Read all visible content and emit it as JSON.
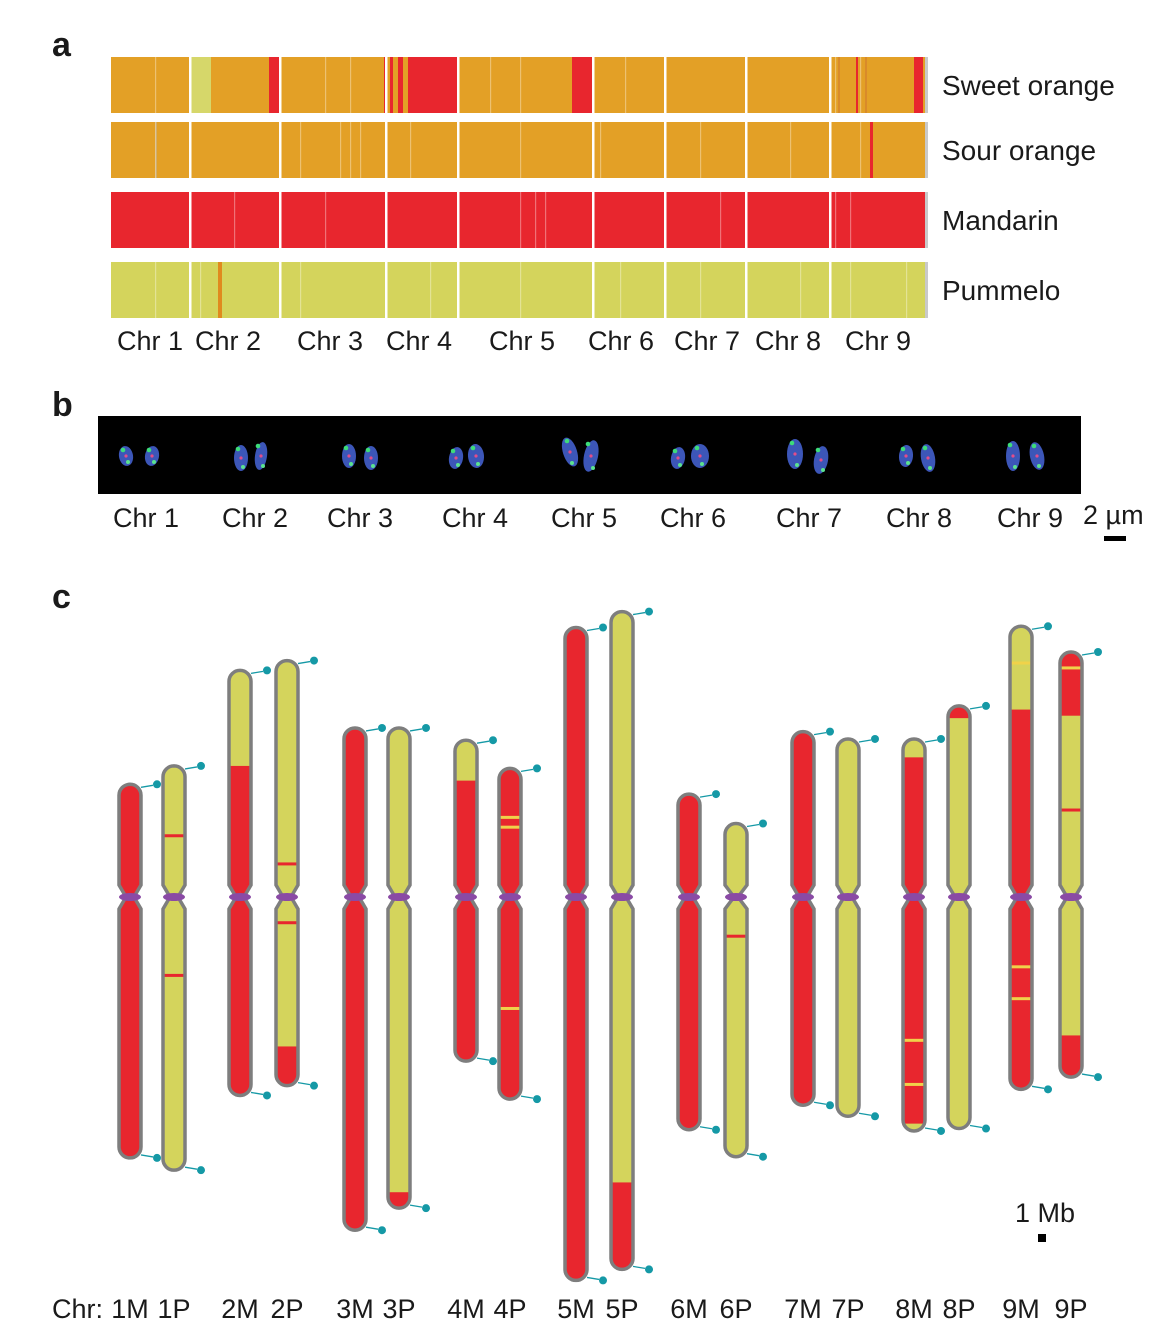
{
  "panels": {
    "a": "a",
    "b": "b",
    "c": "c"
  },
  "colors": {
    "sweet_orange_base": "#e3a026",
    "mandarin_red": "#e8262e",
    "pummelo_yellow": "#d4d45c",
    "light_yellow": "#d6d76a",
    "centromere_purple": "#8a4aa5",
    "telomere_teal": "#1599a6",
    "outline_gray": "#7e7e7e",
    "image_black": "#000000"
  },
  "panel_a": {
    "rows": [
      {
        "label": "Sweet orange",
        "base": "#e3a026"
      },
      {
        "label": "Sour orange",
        "base": "#e3a026"
      },
      {
        "label": "Mandarin",
        "base": "#e8262e"
      },
      {
        "label": "Pummelo",
        "base": "#d4d45c"
      }
    ],
    "chromosome_labels": [
      "Chr 1",
      "Chr 2",
      "Chr 3",
      "Chr 4",
      "Chr 5",
      "Chr 6",
      "Chr 7",
      "Chr 8",
      "Chr 9"
    ]
  },
  "panel_b": {
    "chromosome_labels": [
      "Chr 1",
      "Chr 2",
      "Chr 3",
      "Chr 4",
      "Chr 5",
      "Chr 6",
      "Chr 7",
      "Chr 8",
      "Chr 9"
    ],
    "scale_bar_label": "2 µm"
  },
  "panel_c": {
    "axis_prefix": "Chr:",
    "scale_bar_label": "1 Mb",
    "chromosomes": [
      {
        "label": "1M",
        "length_mb": 30.5,
        "centromere_mb": 9.2,
        "base": "red",
        "yellow_segments": [],
        "red_bands_mb": []
      },
      {
        "label": "1P",
        "length_mb": 33.0,
        "centromere_mb": 10.7,
        "base": "yellow",
        "yellow_segments": [],
        "red_bands_mb": [
          5.7,
          17.1
        ]
      },
      {
        "label": "2M",
        "length_mb": 34.7,
        "centromere_mb": 18.5,
        "base": "red",
        "yellow_segments": [
          [
            0,
            7.8
          ]
        ],
        "red_bands_mb": []
      },
      {
        "label": "2P",
        "length_mb": 34.7,
        "centromere_mb": 19.3,
        "base": "yellow",
        "yellow_segments": [],
        "red_bands_mb": [
          16.6,
          21.4
        ],
        "red_segments": [
          [
            31.5,
            34.7
          ]
        ]
      },
      {
        "label": "3M",
        "length_mb": 41.0,
        "centromere_mb": 13.8,
        "base": "red",
        "yellow_segments": [],
        "red_bands_mb": []
      },
      {
        "label": "3P",
        "length_mb": 39.2,
        "centromere_mb": 13.8,
        "base": "yellow",
        "yellow_segments": [],
        "red_bands_mb": [],
        "red_segments": [
          [
            37.9,
            39.2
          ]
        ]
      },
      {
        "label": "4M",
        "length_mb": 26.2,
        "centromere_mb": 12.8,
        "base": "red",
        "yellow_segments": [
          [
            0,
            3.3
          ]
        ],
        "red_bands_mb": []
      },
      {
        "label": "4P",
        "length_mb": 27.0,
        "centromere_mb": 10.5,
        "base": "red",
        "yellow_segments": [],
        "yellow_bands_mb": [
          4.0,
          4.8,
          19.6
        ],
        "red_bands_mb": []
      },
      {
        "label": "5M",
        "length_mb": 53.3,
        "centromere_mb": 22.0,
        "base": "red",
        "yellow_segments": [],
        "red_bands_mb": []
      },
      {
        "label": "5P",
        "length_mb": 53.7,
        "centromere_mb": 23.3,
        "base": "yellow",
        "yellow_segments": [],
        "red_bands_mb": [],
        "red_segments": [
          [
            46.6,
            53.7
          ]
        ]
      },
      {
        "label": "6M",
        "length_mb": 27.4,
        "centromere_mb": 8.4,
        "base": "red",
        "yellow_segments": [],
        "red_bands_mb": []
      },
      {
        "label": "6P",
        "length_mb": 27.2,
        "centromere_mb": 6.0,
        "base": "yellow",
        "yellow_segments": [],
        "red_bands_mb": [
          9.2
        ]
      },
      {
        "label": "7M",
        "length_mb": 30.5,
        "centromere_mb": 13.5,
        "base": "red",
        "yellow_segments": [],
        "red_bands_mb": []
      },
      {
        "label": "7P",
        "length_mb": 30.8,
        "centromere_mb": 12.9,
        "base": "yellow",
        "yellow_segments": [],
        "red_bands_mb": []
      },
      {
        "label": "8M",
        "length_mb": 32.0,
        "centromere_mb": 12.9,
        "base": "red",
        "yellow_segments": [
          [
            0,
            1.5
          ],
          [
            31.4,
            32.0
          ]
        ],
        "yellow_bands_mb": [
          24.6,
          28.2
        ],
        "red_bands_mb": []
      },
      {
        "label": "8P",
        "length_mb": 34.5,
        "centromere_mb": 15.6,
        "base": "yellow",
        "yellow_segments": [],
        "red_bands_mb": [],
        "red_segments": [
          [
            0,
            1.0
          ]
        ]
      },
      {
        "label": "9M",
        "length_mb": 37.8,
        "centromere_mb": 22.1,
        "base": "red",
        "yellow_segments": [
          [
            0,
            6.8
          ]
        ],
        "yellow_bands_mb": [
          3.0,
          27.8,
          30.4
        ],
        "red_bands_mb": []
      },
      {
        "label": "9P",
        "length_mb": 34.7,
        "centromere_mb": 20.0,
        "base": "yellow",
        "yellow_segments": [],
        "red_bands_mb": [
          12.9
        ],
        "red_segments": [
          [
            0,
            5.2
          ],
          [
            31.3,
            34.7
          ]
        ],
        "yellow_bands_mb_in_red": [
          1.3
        ]
      }
    ]
  }
}
